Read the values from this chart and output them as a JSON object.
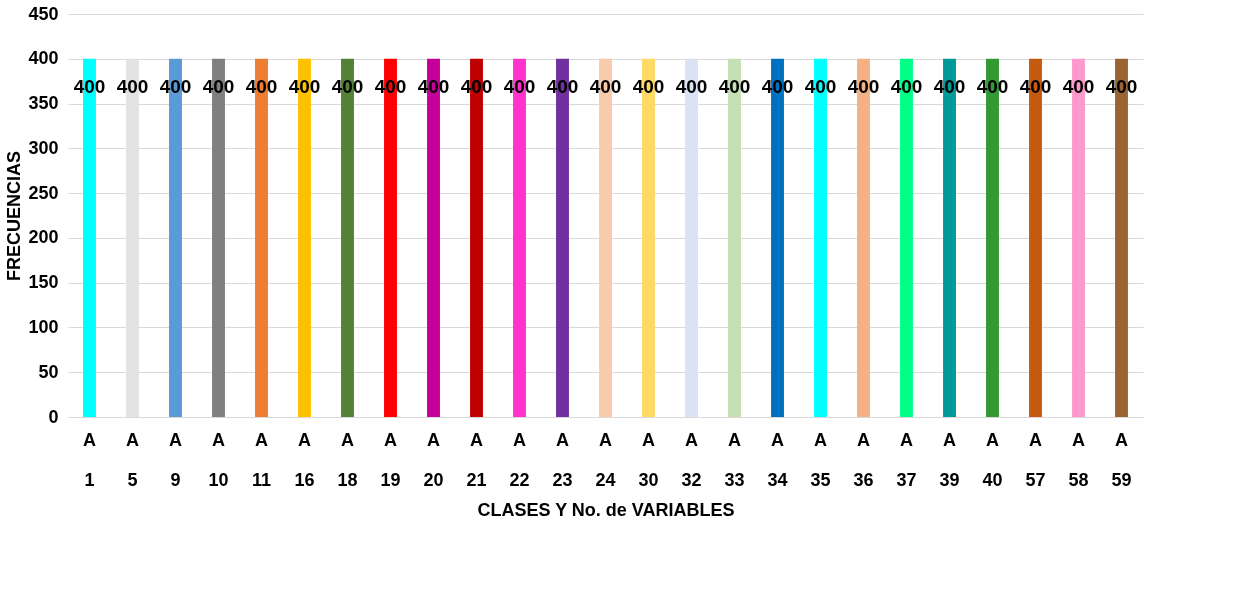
{
  "chart_data": {
    "type": "bar",
    "xlabel": "CLASES Y No. de VARIABLES",
    "ylabel": "FRECUENCIAS",
    "categories": [
      "A\n1",
      "A\n5",
      "A\n9",
      "A\n10",
      "A\n11",
      "A\n16",
      "A\n18",
      "A\n19",
      "A\n20",
      "A\n21",
      "A\n22",
      "A\n23",
      "A\n24",
      "A\n30",
      "A\n32",
      "A\n33",
      "A\n34",
      "A\n35",
      "A\n36",
      "A\n37",
      "A\n39",
      "A\n40",
      "A\n57",
      "A\n58",
      "A\n59"
    ],
    "values": [
      400,
      400,
      400,
      400,
      400,
      400,
      400,
      400,
      400,
      400,
      400,
      400,
      400,
      400,
      400,
      400,
      400,
      400,
      400,
      400,
      400,
      400,
      400,
      400,
      400
    ],
    "colors": [
      "#00ffff",
      "#e3e3e3",
      "#5b9bd5",
      "#808080",
      "#ed7d31",
      "#ffc000",
      "#548235",
      "#ff0000",
      "#c5009a",
      "#c00000",
      "#ff33cc",
      "#7030a0",
      "#f8cbad",
      "#ffd966",
      "#dae3f3",
      "#c5e0b4",
      "#0070c0",
      "#00ffff",
      "#f4b183",
      "#00ff88",
      "#009999",
      "#339933",
      "#c55a11",
      "#ff99cc",
      "#996633"
    ],
    "ylim": [
      0,
      450
    ],
    "yticks": [
      0,
      50,
      100,
      150,
      200,
      250,
      300,
      350,
      400,
      450
    ],
    "grid": "y",
    "data_labels": true
  }
}
